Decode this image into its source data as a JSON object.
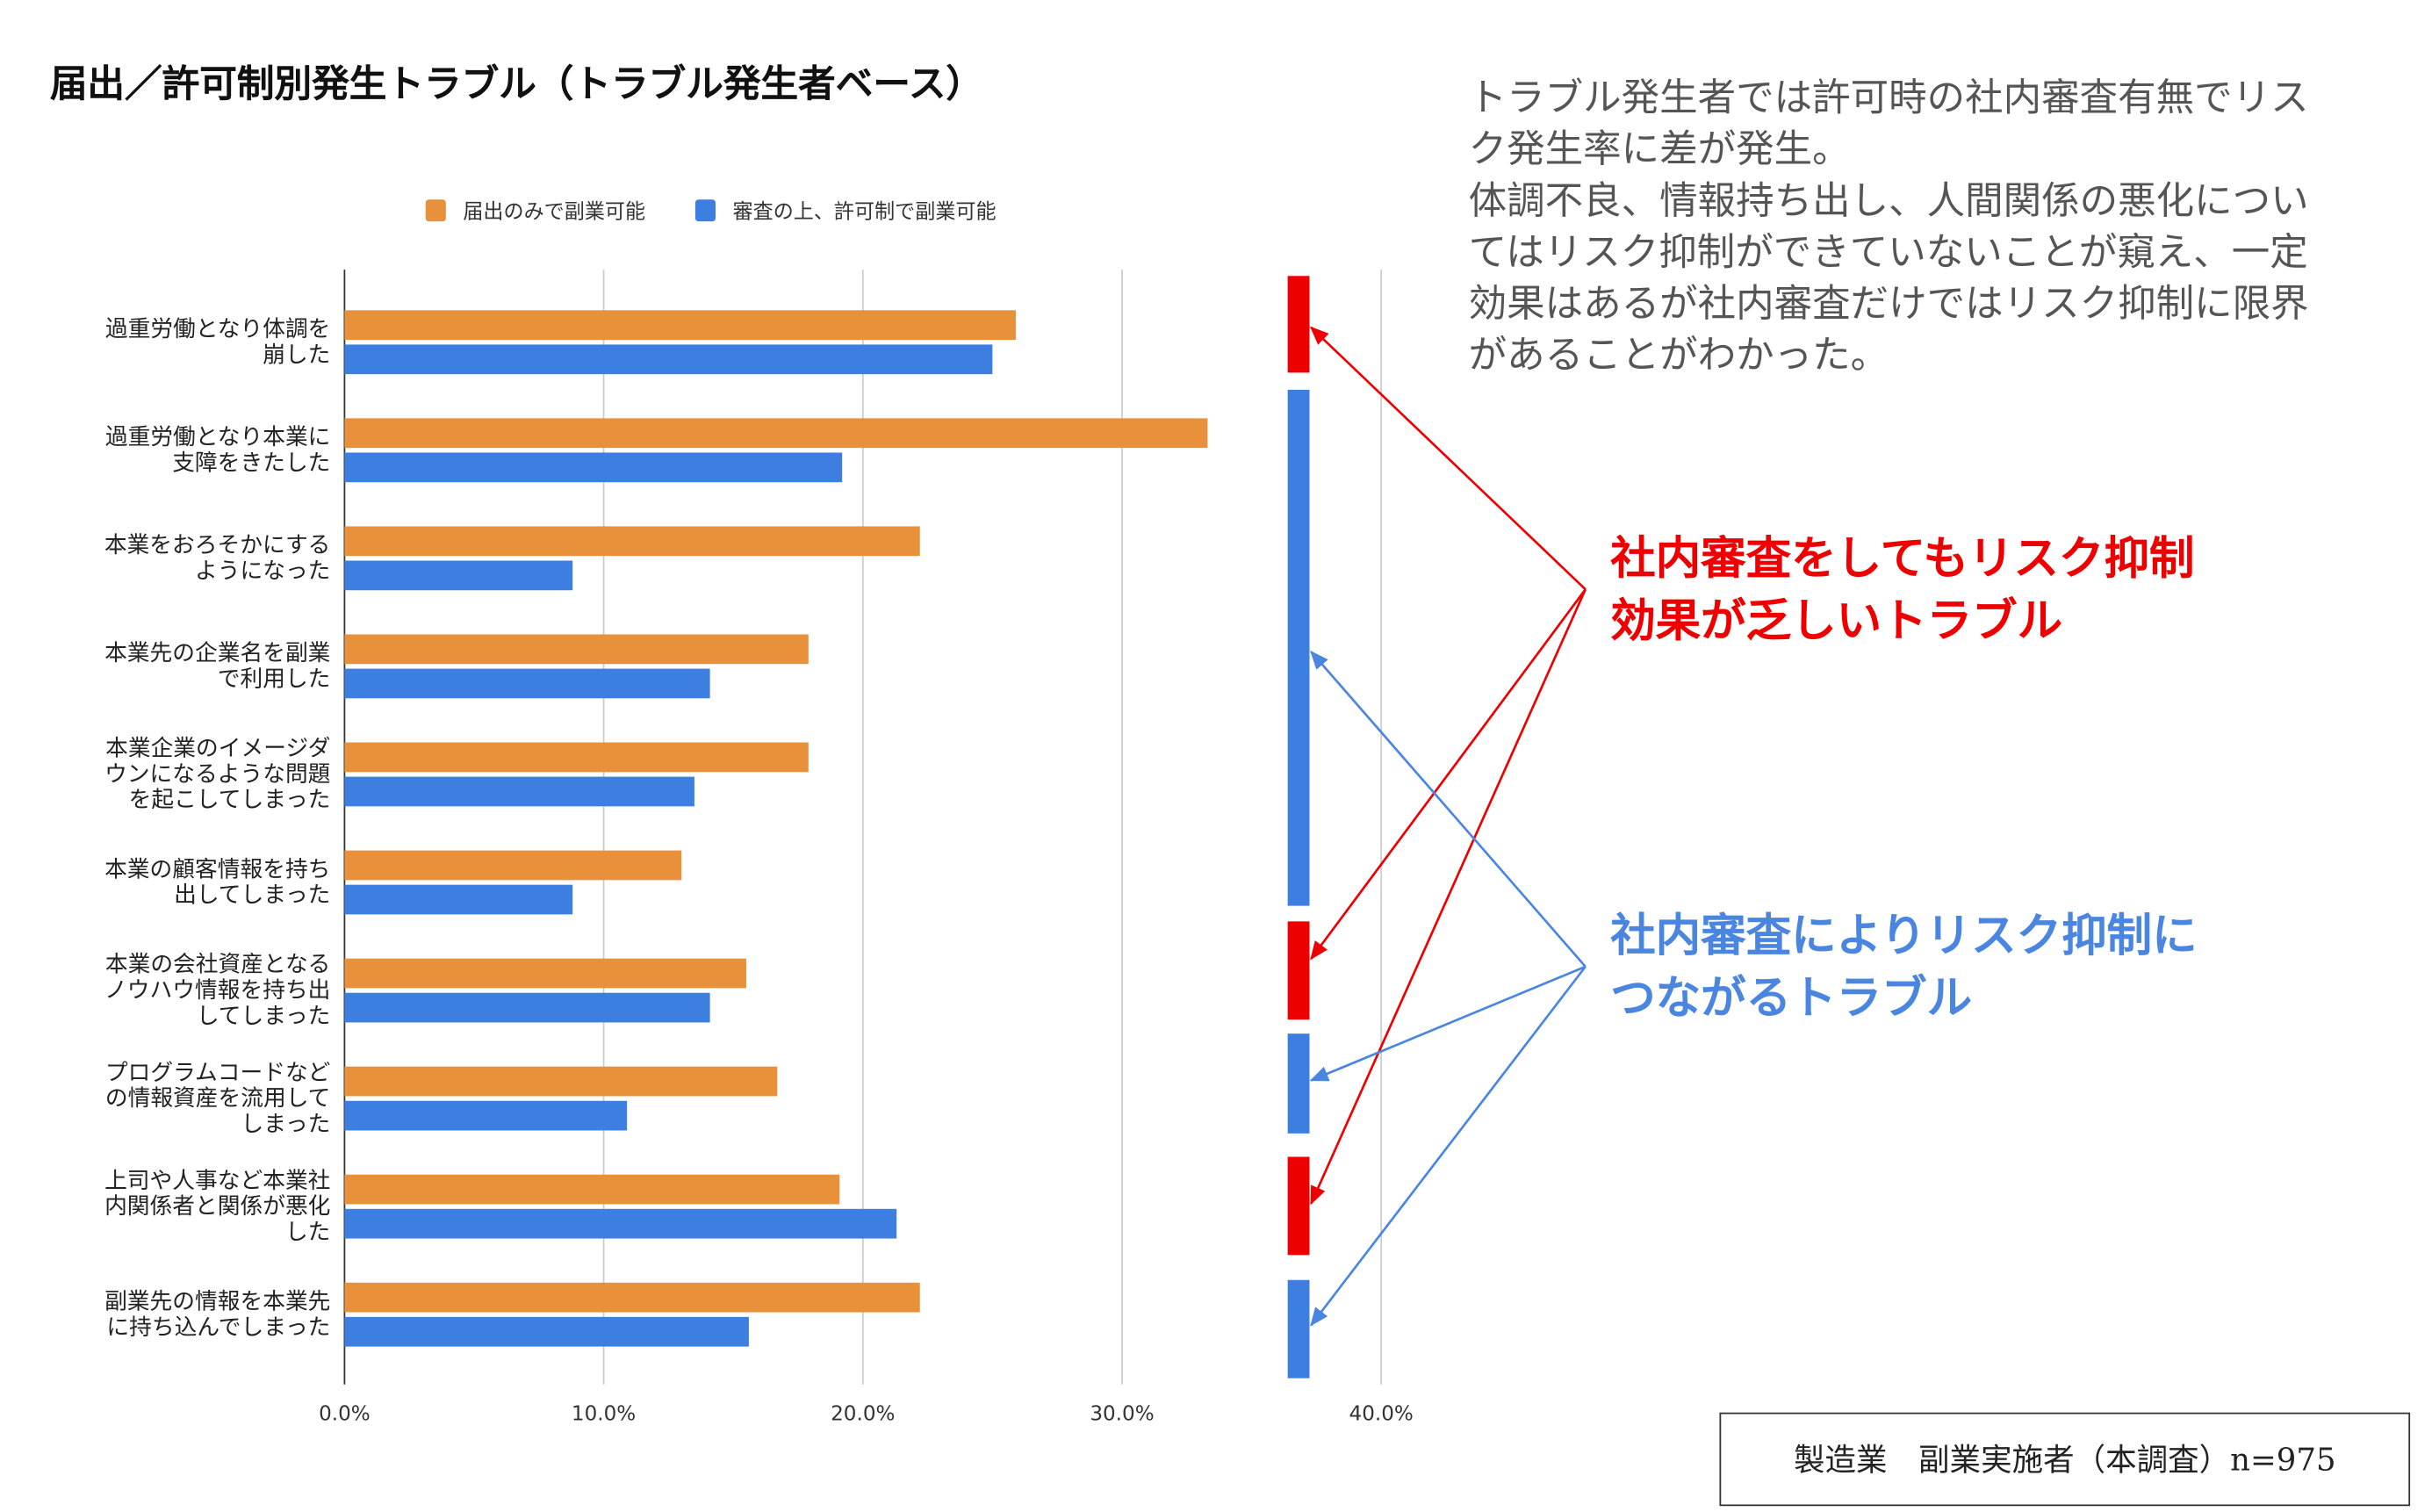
{
  "title": "届出／許可制別発生トラブル（トラブル発生者ベース）",
  "note_lines": [
    "トラブル発生者では許可時の社内審査有無でリス",
    "ク発生率に差が発生。",
    "体調不良、情報持ち出し、人間関係の悪化につい",
    "てはリスク抑制ができていないことが窺え、一定",
    "効果はあるが社内審査だけではリスク抑制に限界",
    "があることがわかった。"
  ],
  "callout_red": [
    "社内審査をしてもリスク抑制",
    "効果が乏しいトラブル"
  ],
  "callout_blue": [
    "社内審査によりリスク抑制に",
    "つながるトラブル"
  ],
  "sample_box": "製造業　副業実施者（本調査）n=975",
  "colors": {
    "orange": "#e8913a",
    "blue": "#3d7fe0",
    "red": "#ee0000",
    "arrow_blue": "#4a86e0"
  },
  "chart_data": {
    "type": "bar",
    "orientation": "horizontal",
    "title": "届出／許可制別発生トラブル（トラブル発生者ベース）",
    "categories": [
      [
        "過重労働となり体調を",
        "崩した"
      ],
      [
        "過重労働となり本業に",
        "支障をきたした"
      ],
      [
        "本業をおろそかにする",
        "ようになった"
      ],
      [
        "本業先の企業名を副業",
        "で利用した"
      ],
      [
        "本業企業のイメージダ",
        "ウンになるような問題",
        "を起こしてしまった"
      ],
      [
        "本業の顧客情報を持ち",
        "出してしまった"
      ],
      [
        "本業の会社資産となる",
        "ノウハウ情報を持ち出",
        "してしまった"
      ],
      [
        "プログラムコードなど",
        "の情報資産を流用して",
        "しまった"
      ],
      [
        "上司や人事など本業社",
        "内関係者と関係が悪化",
        "した"
      ],
      [
        "副業先の情報を本業先",
        "に持ち込んでしまった"
      ]
    ],
    "series": [
      {
        "name": "届出のみで副業可能",
        "color": "#e8913a",
        "values": [
          25.9,
          33.3,
          22.2,
          17.9,
          17.9,
          13.0,
          15.5,
          16.7,
          19.1,
          22.2
        ]
      },
      {
        "name": "審査の上、許可制で副業可能",
        "color": "#3d7fe0",
        "values": [
          25.0,
          19.2,
          8.8,
          14.1,
          13.5,
          8.8,
          14.1,
          10.9,
          21.3,
          15.6
        ]
      }
    ],
    "xticks": [
      "0.0%",
      "10.0%",
      "20.0%",
      "30.0%",
      "40.0%"
    ],
    "xlim": [
      0,
      40
    ],
    "grid": true,
    "legend": "top",
    "markers": [
      "red",
      "blue",
      "blue",
      "blue",
      "blue",
      "blue",
      "red",
      "blue",
      "red",
      "blue"
    ]
  }
}
